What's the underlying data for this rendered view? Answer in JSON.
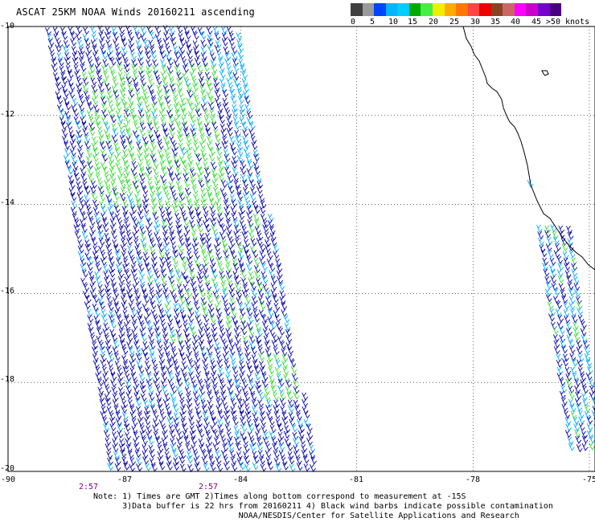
{
  "title": "ASCAT 25KM NOAA Winds 20160211 ascending",
  "legend": {
    "colors": [
      "#404040",
      "#9a9a9a",
      "#0044ff",
      "#00b4ff",
      "#00ccff",
      "#00aa00",
      "#44ee44",
      "#eeee00",
      "#ffaa00",
      "#ff7700",
      "#ff4444",
      "#ee0000",
      "#884422",
      "#cc6666",
      "#ff00ff",
      "#cc00cc",
      "#7700cc",
      "#4b0082"
    ],
    "labels": [
      "0",
      "5",
      "10",
      "15",
      "20",
      "25",
      "30",
      "35",
      "40",
      "45",
      ">50 knots"
    ],
    "unit": "knots"
  },
  "axes": {
    "lat_labels": [
      "-10",
      "-12",
      "-14",
      "-16",
      "-18",
      "-20"
    ],
    "lon_labels": [
      "-90",
      "-87",
      "-84",
      "-81",
      "-78",
      "-75"
    ],
    "lat_range": [
      -20,
      -10
    ],
    "lon_range": [
      -90,
      -75
    ],
    "grid": "dotted"
  },
  "times": [
    "2:57",
    "2:57"
  ],
  "notes": [
    "Note: 1) Times are GMT 2)Times along bottom correspond to measurement at -15S",
    "      3)Data buffer is 22 hrs from 20160211 4) Black wind barbs indicate possible contamination",
    "                              NOAA/NESDIS/Center for Satellite Applications and Research"
  ],
  "colors": {
    "barb_dark_blue": "#0000aa",
    "barb_light_blue": "#00aaff",
    "barb_green": "#33dd33",
    "coastline": "#000000",
    "grid": "#000000"
  }
}
